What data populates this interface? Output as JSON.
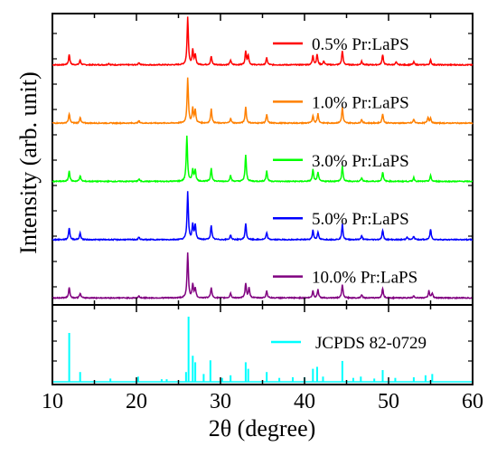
{
  "chart_data": {
    "type": "line",
    "panels": 2,
    "xlabel": "2θ (degree)",
    "ylabel": "Intensity (arb. unit)",
    "xlim": [
      10,
      60
    ],
    "xticks": [
      "10",
      "20",
      "30",
      "40",
      "50",
      "60"
    ],
    "y_ticklabels": false,
    "grid": false,
    "legend_placement": "label right of short line beside each curve",
    "series": [
      {
        "name": "0.5% Pr:LaPS",
        "color": "#ff0000",
        "offset": 4,
        "peaks": [
          [
            12.0,
            0.22
          ],
          [
            13.3,
            0.1
          ],
          [
            16.7,
            0.03
          ],
          [
            20.3,
            0.05
          ],
          [
            26.1,
            1.0
          ],
          [
            26.7,
            0.3
          ],
          [
            27.0,
            0.2
          ],
          [
            28.9,
            0.18
          ],
          [
            31.2,
            0.1
          ],
          [
            33.0,
            0.28
          ],
          [
            33.3,
            0.2
          ],
          [
            35.5,
            0.15
          ],
          [
            41.0,
            0.2
          ],
          [
            41.5,
            0.22
          ],
          [
            42.3,
            0.08
          ],
          [
            44.5,
            0.3
          ],
          [
            46.8,
            0.08
          ],
          [
            49.3,
            0.22
          ],
          [
            50.9,
            0.06
          ],
          [
            53.0,
            0.06
          ],
          [
            55.0,
            0.1
          ]
        ]
      },
      {
        "name": "1.0% Pr:LaPS",
        "color": "#ff8000",
        "offset": 3,
        "peaks": [
          [
            12.0,
            0.2
          ],
          [
            13.3,
            0.12
          ],
          [
            20.3,
            0.05
          ],
          [
            26.1,
            0.95
          ],
          [
            26.7,
            0.3
          ],
          [
            27.0,
            0.26
          ],
          [
            28.9,
            0.3
          ],
          [
            31.2,
            0.1
          ],
          [
            33.0,
            0.34
          ],
          [
            35.5,
            0.18
          ],
          [
            41.0,
            0.16
          ],
          [
            41.6,
            0.2
          ],
          [
            44.5,
            0.33
          ],
          [
            46.8,
            0.08
          ],
          [
            49.3,
            0.2
          ],
          [
            53.0,
            0.08
          ],
          [
            54.7,
            0.12
          ],
          [
            55.0,
            0.1
          ]
        ]
      },
      {
        "name": "3.0% Pr:LaPS",
        "color": "#00ff00",
        "offset": 2,
        "peaks": [
          [
            12.0,
            0.22
          ],
          [
            13.3,
            0.12
          ],
          [
            20.3,
            0.05
          ],
          [
            26.0,
            0.95
          ],
          [
            26.7,
            0.25
          ],
          [
            27.0,
            0.24
          ],
          [
            28.9,
            0.28
          ],
          [
            31.2,
            0.12
          ],
          [
            33.0,
            0.55
          ],
          [
            35.5,
            0.22
          ],
          [
            41.0,
            0.25
          ],
          [
            41.6,
            0.2
          ],
          [
            44.5,
            0.32
          ],
          [
            46.8,
            0.08
          ],
          [
            49.3,
            0.2
          ],
          [
            53.0,
            0.08
          ],
          [
            55.0,
            0.12
          ]
        ]
      },
      {
        "name": "5.0% Pr:LaPS",
        "color": "#0000ff",
        "offset": 1,
        "peaks": [
          [
            12.0,
            0.25
          ],
          [
            13.3,
            0.14
          ],
          [
            20.3,
            0.05
          ],
          [
            26.1,
            1.0
          ],
          [
            26.7,
            0.32
          ],
          [
            27.0,
            0.3
          ],
          [
            28.9,
            0.3
          ],
          [
            31.2,
            0.1
          ],
          [
            33.0,
            0.34
          ],
          [
            35.5,
            0.15
          ],
          [
            41.0,
            0.2
          ],
          [
            41.6,
            0.16
          ],
          [
            44.5,
            0.32
          ],
          [
            46.8,
            0.08
          ],
          [
            49.3,
            0.2
          ],
          [
            52.2,
            0.06
          ],
          [
            53.0,
            0.07
          ],
          [
            55.0,
            0.22
          ]
        ]
      },
      {
        "name": "10.0% Pr:LaPS",
        "color": "#800080",
        "offset": 0,
        "peaks": [
          [
            12.0,
            0.22
          ],
          [
            13.3,
            0.1
          ],
          [
            20.3,
            0.04
          ],
          [
            26.1,
            0.95
          ],
          [
            26.7,
            0.28
          ],
          [
            27.0,
            0.2
          ],
          [
            28.9,
            0.22
          ],
          [
            31.2,
            0.1
          ],
          [
            33.0,
            0.3
          ],
          [
            33.4,
            0.22
          ],
          [
            35.5,
            0.15
          ],
          [
            41.0,
            0.15
          ],
          [
            41.6,
            0.18
          ],
          [
            44.5,
            0.28
          ],
          [
            46.8,
            0.07
          ],
          [
            49.3,
            0.2
          ],
          [
            53.0,
            0.05
          ],
          [
            54.8,
            0.15
          ],
          [
            55.2,
            0.1
          ]
        ]
      }
    ],
    "reference": {
      "name": "JCPDS 82-0729",
      "color": "#00ffff",
      "sticks": [
        [
          12.0,
          0.75
        ],
        [
          13.3,
          0.15
        ],
        [
          16.9,
          0.05
        ],
        [
          20.2,
          0.08
        ],
        [
          23.0,
          0.04
        ],
        [
          23.6,
          0.04
        ],
        [
          25.9,
          0.15
        ],
        [
          26.2,
          1.0
        ],
        [
          26.7,
          0.4
        ],
        [
          27.0,
          0.3
        ],
        [
          28.0,
          0.12
        ],
        [
          28.8,
          0.33
        ],
        [
          30.2,
          0.06
        ],
        [
          31.2,
          0.1
        ],
        [
          33.0,
          0.3
        ],
        [
          33.3,
          0.2
        ],
        [
          35.5,
          0.15
        ],
        [
          37.0,
          0.06
        ],
        [
          38.6,
          0.07
        ],
        [
          40.0,
          0.07
        ],
        [
          41.0,
          0.2
        ],
        [
          41.5,
          0.23
        ],
        [
          42.2,
          0.08
        ],
        [
          44.5,
          0.32
        ],
        [
          45.8,
          0.06
        ],
        [
          46.7,
          0.08
        ],
        [
          48.3,
          0.05
        ],
        [
          49.3,
          0.18
        ],
        [
          50.8,
          0.06
        ],
        [
          53.0,
          0.07
        ],
        [
          54.4,
          0.1
        ],
        [
          55.2,
          0.12
        ]
      ]
    }
  }
}
